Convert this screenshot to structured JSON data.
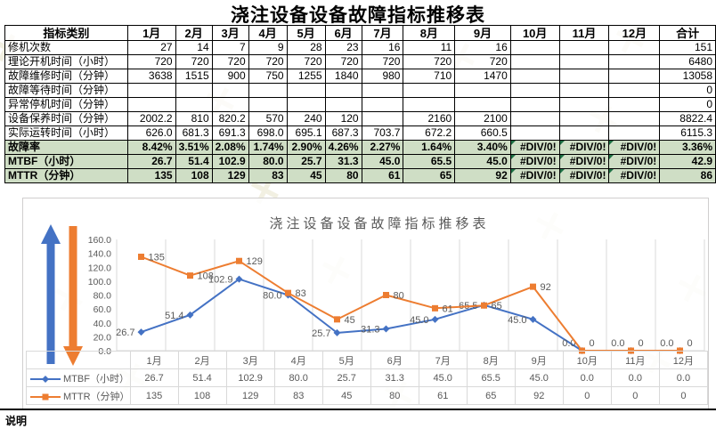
{
  "page": {
    "title": "浇注设备设备故障指标推移表",
    "footnote": "说明"
  },
  "colors": {
    "highlight_bg": "#cfdec5",
    "table_border": "#000000",
    "chart_border": "#d0cece",
    "chart_text": "#595959",
    "gridline": "#d9d9d9",
    "error_flag": "#1e7145",
    "series_blue": "#4472c4",
    "series_orange": "#ed7d31"
  },
  "table": {
    "columns": [
      "指标类别",
      "1月",
      "2月",
      "3月",
      "4月",
      "5月",
      "6月",
      "7月",
      "8月",
      "9月",
      "10月",
      "11月",
      "12月",
      "合计"
    ],
    "rows": [
      {
        "label": "修机次数",
        "values": [
          "27",
          "14",
          "7",
          "9",
          "28",
          "23",
          "16",
          "11",
          "16",
          "",
          "",
          "",
          "151"
        ],
        "highlight": false
      },
      {
        "label": "理论开机时间（小时）",
        "values": [
          "720",
          "720",
          "720",
          "720",
          "720",
          "720",
          "720",
          "720",
          "720",
          "",
          "",
          "",
          "6480"
        ],
        "highlight": false
      },
      {
        "label": "故障维修时间（分钟）",
        "values": [
          "3638",
          "1515",
          "900",
          "750",
          "1255",
          "1840",
          "980",
          "710",
          "1470",
          "",
          "",
          "",
          "13058"
        ],
        "highlight": false
      },
      {
        "label": "故障等待时间（分钟）",
        "values": [
          "",
          "",
          "",
          "",
          "",
          "",
          "",
          "",
          "",
          "",
          "",
          "",
          "0"
        ],
        "highlight": false
      },
      {
        "label": "异常停机时间（分钟）",
        "values": [
          "",
          "",
          "",
          "",
          "",
          "",
          "",
          "",
          "",
          "",
          "",
          "",
          "0"
        ],
        "highlight": false
      },
      {
        "label": "设备保养时间（分钟）",
        "values": [
          "2002.2",
          "810",
          "820.2",
          "570",
          "240",
          "120",
          "",
          "2160",
          "2100",
          "",
          "",
          "",
          "8822.4"
        ],
        "highlight": false
      },
      {
        "label": "实际运转时间（小时）",
        "values": [
          "626.0",
          "681.3",
          "691.3",
          "698.0",
          "695.1",
          "687.3",
          "703.7",
          "672.2",
          "660.5",
          "",
          "",
          "",
          "6115.3"
        ],
        "highlight": false
      },
      {
        "label": "故障率",
        "values": [
          "8.42%",
          "3.51%",
          "2.08%",
          "1.74%",
          "2.90%",
          "4.26%",
          "2.27%",
          "1.64%",
          "3.40%",
          "#DIV/0!",
          "#DIV/0!",
          "#DIV/0!",
          "3.36%"
        ],
        "highlight": true
      },
      {
        "label": "MTBF（小时）",
        "values": [
          "26.7",
          "51.4",
          "102.9",
          "80.0",
          "25.7",
          "31.3",
          "45.0",
          "65.5",
          "45.0",
          "#DIV/0!",
          "#DIV/0!",
          "#DIV/0!",
          "42.9"
        ],
        "highlight": true
      },
      {
        "label": "MTTR（分钟）",
        "values": [
          "135",
          "108",
          "129",
          "83",
          "45",
          "80",
          "61",
          "65",
          "92",
          "#DIV/0!",
          "#DIV/0!",
          "#DIV/0!",
          "86"
        ],
        "highlight": true
      }
    ]
  },
  "chart_data": {
    "type": "line",
    "title": "浇注设备设备故障指标推移表",
    "categories": [
      "1月",
      "2月",
      "3月",
      "4月",
      "5月",
      "6月",
      "7月",
      "8月",
      "9月",
      "10月",
      "11月",
      "12月"
    ],
    "series": [
      {
        "name": "MTBF（小时）",
        "marker": "diamond",
        "color": "#4472c4",
        "values": [
          26.7,
          51.4,
          102.9,
          80.0,
          25.7,
          31.3,
          45.0,
          65.5,
          45.0,
          0.0,
          0.0,
          0.0
        ],
        "labels": [
          "26.7",
          "51.4",
          "102.9",
          "80.0",
          "25.7",
          "31.3",
          "45.0",
          "65.5",
          "45.0",
          "0.0",
          "0.0",
          "0.0"
        ]
      },
      {
        "name": "MTTR（分钟）",
        "marker": "square",
        "color": "#ed7d31",
        "values": [
          135,
          108,
          129,
          83,
          45,
          80,
          61,
          65,
          92,
          0,
          0,
          0
        ],
        "labels": [
          "135",
          "108",
          "129",
          "83",
          "45",
          "80",
          "61",
          "65",
          "92",
          "0",
          "0",
          "0"
        ]
      }
    ],
    "y_ticks": [
      "160.0",
      "140.0",
      "120.0",
      "100.0",
      "80.0",
      "60.0",
      "40.0",
      "20.0",
      "0.0"
    ],
    "ylim": [
      0,
      160
    ],
    "grid": "vertical",
    "legend_position": "table-left",
    "annotations": {
      "up_arrow_color": "#4472c4",
      "down_arrow_color": "#ed7d31"
    }
  }
}
